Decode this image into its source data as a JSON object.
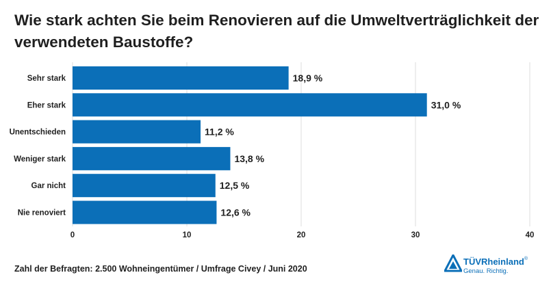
{
  "title": "Wie stark achten Sie beim Renovieren auf die Umweltverträglichkeit der verwendeten Baustoffe?",
  "footnote": "Zahl der Befragten: 2.500 Wohneingentümer / Umfrage Civey / Juni 2020",
  "logo": {
    "brand": "TÜVRheinland",
    "registered": "®",
    "tagline": "Genau. Richtig.",
    "icon": "tuv-triangle-logo-icon"
  },
  "colors": {
    "bar": "#0b6fb8",
    "grid": "#dcdcdc",
    "text": "#1f1f1f"
  },
  "chart_data": {
    "type": "bar",
    "orientation": "horizontal",
    "categories": [
      "Sehr stark",
      "Eher stark",
      "Unentschieden",
      "Weniger stark",
      "Gar nicht",
      "Nie renoviert"
    ],
    "values": [
      18.9,
      31.0,
      11.2,
      13.8,
      12.5,
      12.6
    ],
    "value_labels": [
      "18,9 %",
      "31,0 %",
      "11,2 %",
      "13,8 %",
      "12,5 %",
      "12,6 %"
    ],
    "xlim": [
      0,
      40
    ],
    "xticks": [
      "0",
      "10",
      "20",
      "30",
      "40"
    ],
    "grid": true
  }
}
